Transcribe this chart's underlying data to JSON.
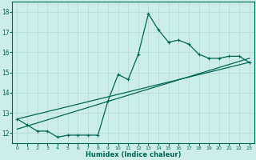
{
  "xlabel": "Humidex (Indice chaleur)",
  "bg_color": "#cceee8",
  "grid_color": "#b8ddd6",
  "line_color": "#006655",
  "xlim": [
    -0.5,
    23.5
  ],
  "ylim": [
    11.5,
    18.5
  ],
  "xticks": [
    0,
    1,
    2,
    3,
    4,
    5,
    6,
    7,
    8,
    9,
    10,
    11,
    12,
    13,
    14,
    15,
    16,
    17,
    18,
    19,
    20,
    21,
    22,
    23
  ],
  "yticks": [
    12,
    13,
    14,
    15,
    16,
    17,
    18
  ],
  "line1_x": [
    0,
    1,
    2,
    3,
    4,
    5,
    6,
    7,
    8,
    9,
    10,
    11,
    12,
    13,
    14,
    15,
    16,
    17,
    18,
    19,
    20,
    21,
    22,
    23
  ],
  "line1_y": [
    12.7,
    12.4,
    12.1,
    12.1,
    11.8,
    11.9,
    11.9,
    11.9,
    11.9,
    13.6,
    14.9,
    14.65,
    15.9,
    17.9,
    17.1,
    16.5,
    16.6,
    16.4,
    15.9,
    15.7,
    15.7,
    15.8,
    15.8,
    15.5
  ],
  "line2_x": [
    0,
    23
  ],
  "line2_y": [
    12.7,
    15.5
  ],
  "line3_x": [
    0,
    23
  ],
  "line3_y": [
    12.2,
    15.7
  ]
}
